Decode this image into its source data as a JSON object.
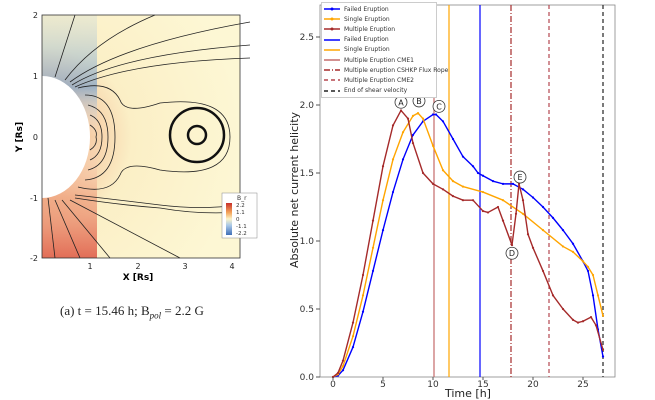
{
  "left_panel": {
    "xlabel": "X [Rs]",
    "ylabel": "Y [Rs]",
    "xticks": [
      "1",
      "2",
      "3",
      "4"
    ],
    "yticks": [
      "2",
      "1",
      "0",
      "-1",
      "-2"
    ],
    "colorbar": {
      "title": "B_r",
      "ticks": [
        "2.2",
        "1.1",
        "0",
        "-1.1",
        "-2.2"
      ]
    },
    "caption": {
      "prefix": "(a) t = 15.46 h; B",
      "sub": "pol",
      "suffix": " = 2.2 G"
    }
  },
  "chart_data": {
    "type": "line",
    "title": "",
    "xlabel": "Time [h]",
    "ylabel": "Absolute net current helicity",
    "xlim": [
      -1.2,
      28.2
    ],
    "ylim": [
      0,
      2.73
    ],
    "xticks": [
      0,
      5,
      10,
      15,
      20,
      25
    ],
    "yticks": [
      0.0,
      0.5,
      1.0,
      1.5,
      2.0,
      2.5
    ],
    "ytick_labels": [
      "0.0",
      "0.5",
      "1.0",
      "1.5",
      "2.0",
      "2.5"
    ],
    "grid": false,
    "legend_position": "top-left",
    "series": [
      {
        "name": "Failed Eruption",
        "color": "#0000ff",
        "x": [
          0,
          0.5,
          1,
          2,
          3,
          4,
          5,
          6,
          7,
          8,
          9,
          10,
          10.3,
          11,
          12,
          13,
          14,
          14.5,
          15,
          16,
          17,
          18,
          19,
          20,
          21,
          22,
          23,
          24,
          25,
          25.5,
          26,
          26.5,
          27
        ],
        "y": [
          0,
          0.01,
          0.05,
          0.22,
          0.48,
          0.78,
          1.08,
          1.36,
          1.6,
          1.78,
          1.88,
          1.93,
          1.93,
          1.88,
          1.75,
          1.62,
          1.55,
          1.5,
          1.48,
          1.44,
          1.42,
          1.42,
          1.38,
          1.32,
          1.25,
          1.17,
          1.08,
          0.98,
          0.85,
          0.78,
          0.6,
          0.35,
          0.15
        ]
      },
      {
        "name": "Single Eruption",
        "color": "#ffa500",
        "x": [
          0,
          0.5,
          1,
          2,
          3,
          4,
          5,
          6,
          7,
          8,
          8.5,
          9,
          10,
          11,
          12,
          13,
          15,
          17,
          19,
          21,
          23,
          24,
          25,
          25.5,
          26,
          26.5,
          27
        ],
        "y": [
          0,
          0.02,
          0.08,
          0.3,
          0.6,
          0.95,
          1.3,
          1.6,
          1.8,
          1.92,
          1.94,
          1.9,
          1.7,
          1.52,
          1.44,
          1.4,
          1.36,
          1.3,
          1.2,
          1.08,
          0.96,
          0.92,
          0.85,
          0.81,
          0.75,
          0.6,
          0.45
        ]
      },
      {
        "name": "Multiple Eruption",
        "color": "#a52a2a",
        "x": [
          0,
          0.5,
          1,
          2,
          3,
          4,
          5,
          6,
          6.8,
          7.5,
          8,
          9,
          10,
          11,
          12,
          13,
          14,
          15,
          15.5,
          16.5,
          17,
          17.9,
          18.3,
          18.6,
          19,
          19.5,
          20,
          21,
          22,
          23,
          24,
          24.5,
          25,
          25.8,
          26.3,
          27
        ],
        "y": [
          0,
          0.03,
          0.12,
          0.4,
          0.75,
          1.15,
          1.55,
          1.85,
          1.96,
          1.9,
          1.72,
          1.5,
          1.42,
          1.38,
          1.33,
          1.3,
          1.3,
          1.22,
          1.21,
          1.25,
          1.15,
          0.97,
          1.2,
          1.42,
          1.3,
          1.05,
          0.95,
          0.78,
          0.6,
          0.5,
          0.42,
          0.4,
          0.41,
          0.44,
          0.38,
          0.2
        ]
      }
    ],
    "vlines": [
      {
        "name": "Failed Eruption",
        "x": 14.7,
        "color": "#0000ff",
        "style": "solid"
      },
      {
        "name": "Single Eruption",
        "x": 11.6,
        "color": "#ffa500",
        "style": "solid"
      },
      {
        "name": "Multiple Eruption CME1",
        "x": 10.1,
        "color": "#c46a6a",
        "style": "solid"
      },
      {
        "name": "Multiple eruption CSHKP Flux Rope",
        "x": 17.8,
        "color": "#a52a2a",
        "style": "dashdot"
      },
      {
        "name": "Multiple Eruption CME2",
        "x": 21.6,
        "color": "#b5474f",
        "style": "dashed"
      },
      {
        "name": "End of shear velocity",
        "x": 27.0,
        "color": "#222222",
        "style": "dashed"
      }
    ],
    "annotations": [
      {
        "label": "A",
        "x": 6.8,
        "y": 2.02
      },
      {
        "label": "B",
        "x": 8.6,
        "y": 2.03
      },
      {
        "label": "C",
        "x": 10.6,
        "y": 1.99
      },
      {
        "label": "D",
        "x": 17.9,
        "y": 0.91
      },
      {
        "label": "E",
        "x": 18.7,
        "y": 1.47
      }
    ]
  }
}
